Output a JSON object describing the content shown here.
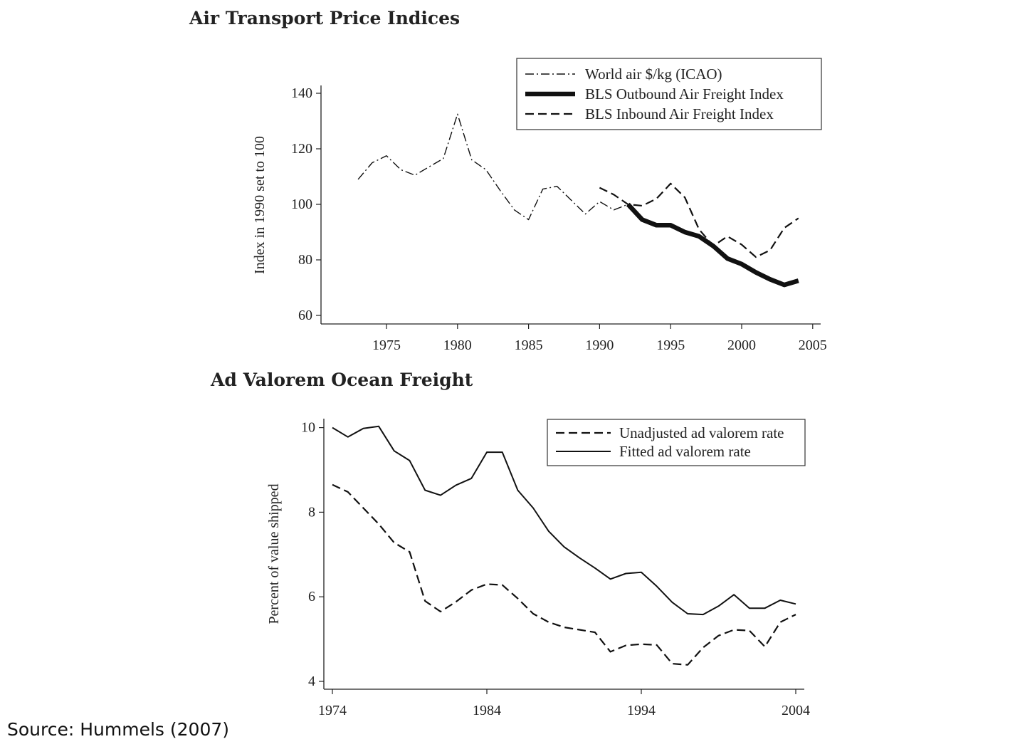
{
  "source": "Source:  Hummels (2007)",
  "chart_data": [
    {
      "type": "line",
      "title": "Air Transport Price Indices",
      "xlabel": "",
      "ylabel": "Index in 1990 set to 100",
      "xlim": [
        1971,
        2006
      ],
      "ylim": [
        60,
        143
      ],
      "xticks": [
        "1975",
        "1980",
        "1985",
        "1990",
        "1995",
        "2000",
        "2005"
      ],
      "yticks": [
        "60",
        "80",
        "100",
        "120",
        "140"
      ],
      "legend_position": "top-right",
      "series": [
        {
          "name": "World air $/kg (ICAO)",
          "style": "dashdot",
          "x": [
            1973,
            1974,
            1975,
            1976,
            1977,
            1978,
            1979,
            1980,
            1981,
            1982,
            1983,
            1984,
            1985,
            1986,
            1987,
            1988,
            1989,
            1990,
            1991,
            1992
          ],
          "y": [
            109,
            115,
            117.5,
            112.5,
            110.5,
            113.5,
            116.5,
            132.5,
            116,
            112.5,
            105,
            98,
            94.5,
            105.5,
            106.5,
            101.5,
            96.5,
            101,
            98,
            100
          ]
        },
        {
          "name": "BLS Outbound Air Freight Index",
          "style": "thick",
          "x": [
            1992,
            1993,
            1994,
            1995,
            1996,
            1997,
            1998,
            1999,
            2000,
            2001,
            2002,
            2003,
            2004
          ],
          "y": [
            100,
            94.5,
            92.5,
            92.5,
            90,
            88.5,
            85,
            80.5,
            78.5,
            75.5,
            73,
            71,
            72.5
          ]
        },
        {
          "name": "BLS Inbound Air Freight Index",
          "style": "dashed",
          "x": [
            1990,
            1991,
            1992,
            1993,
            1994,
            1995,
            1996,
            1997,
            1998,
            1999,
            2000,
            2001,
            2002,
            2003,
            2004
          ],
          "y": [
            106,
            103.5,
            100,
            99.5,
            102,
            107.5,
            102.5,
            91,
            85,
            88.5,
            85.5,
            81,
            83.5,
            91.5,
            95
          ]
        }
      ]
    },
    {
      "type": "line",
      "title": "Ad Valorem Ocean Freight",
      "xlabel": "",
      "ylabel": "Percent of value shipped",
      "xlim": [
        1974,
        2004
      ],
      "ylim": [
        4,
        10.3
      ],
      "xticks": [
        "1974",
        "1984",
        "1994",
        "2004"
      ],
      "yticks": [
        "4",
        "6",
        "8",
        "10"
      ],
      "legend_position": "top-right",
      "series": [
        {
          "name": "Unadjusted ad valorem rate",
          "style": "dashed",
          "x": [
            1974,
            1975,
            1976,
            1977,
            1978,
            1979,
            1980,
            1981,
            1982,
            1983,
            1984,
            1985,
            1986,
            1987,
            1988,
            1989,
            1990,
            1991,
            1992,
            1993,
            1994,
            1995,
            1996,
            1997,
            1998,
            1999,
            2000,
            2001,
            2002,
            2003,
            2004
          ],
          "y": [
            8.65,
            8.48,
            8.1,
            7.72,
            7.28,
            7.06,
            5.9,
            5.65,
            5.88,
            6.16,
            6.3,
            6.28,
            5.96,
            5.6,
            5.4,
            5.28,
            5.22,
            5.16,
            4.7,
            4.85,
            4.88,
            4.86,
            4.42,
            4.39,
            4.8,
            5.08,
            5.22,
            5.2,
            4.82,
            5.4,
            5.58
          ]
        },
        {
          "name": "Fitted ad valorem rate",
          "style": "solid",
          "x": [
            1974,
            1975,
            1976,
            1977,
            1978,
            1979,
            1980,
            1981,
            1982,
            1983,
            1984,
            1985,
            1986,
            1987,
            1988,
            1989,
            1990,
            1991,
            1992,
            1993,
            1994,
            1995,
            1996,
            1997,
            1998,
            1999,
            2000,
            2001,
            2002,
            2003,
            2004
          ],
          "y": [
            10.0,
            9.78,
            9.98,
            10.03,
            9.45,
            9.22,
            8.52,
            8.4,
            8.64,
            8.8,
            9.42,
            9.42,
            8.52,
            8.1,
            7.55,
            7.18,
            6.92,
            6.68,
            6.42,
            6.55,
            6.58,
            6.25,
            5.87,
            5.6,
            5.58,
            5.78,
            6.05,
            5.73,
            5.73,
            5.92,
            5.83
          ]
        }
      ]
    }
  ]
}
